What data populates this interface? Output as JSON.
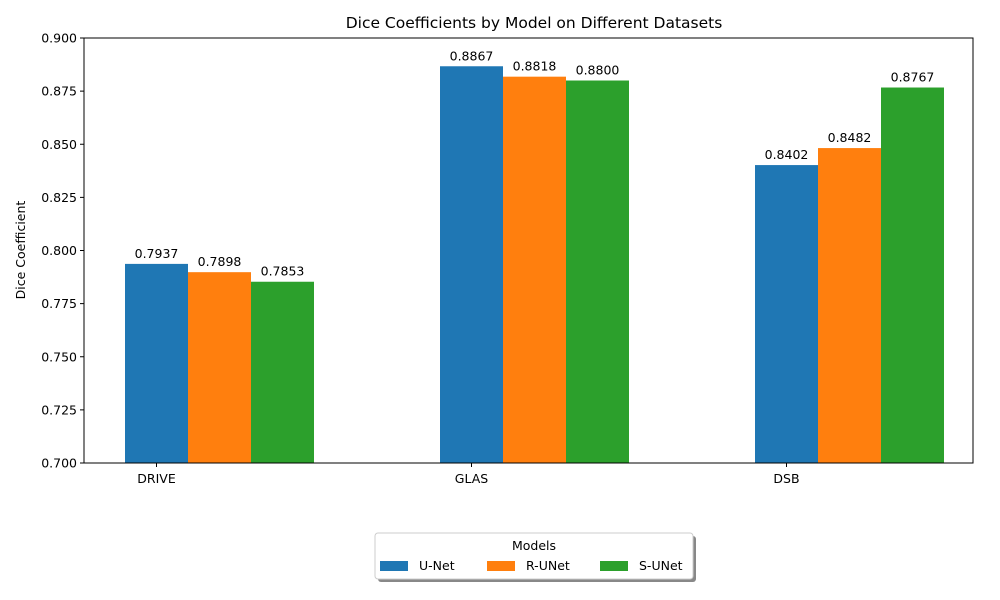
{
  "chart_data": {
    "type": "bar",
    "title": "Dice Coefficients by Model on Different Datasets",
    "xlabel": "",
    "ylabel": "Dice Coefficient",
    "categories": [
      "DRIVE",
      "GLAS",
      "DSB"
    ],
    "series": [
      {
        "name": "U-Net",
        "values": [
          0.7937,
          0.8867,
          0.8402
        ],
        "color": "#1f77b4"
      },
      {
        "name": "R-UNet",
        "values": [
          0.7898,
          0.8818,
          0.8482
        ],
        "color": "#ff7f0e"
      },
      {
        "name": "S-UNet",
        "values": [
          0.7853,
          0.88,
          0.8767
        ],
        "color": "#2ca02c"
      }
    ],
    "ylim": [
      0.7,
      0.9
    ],
    "yticks": [
      "0.700",
      "0.725",
      "0.750",
      "0.775",
      "0.800",
      "0.825",
      "0.850",
      "0.875",
      "0.900"
    ],
    "grid": false,
    "legend": {
      "title": "Models",
      "placement": "bottom-center"
    }
  }
}
